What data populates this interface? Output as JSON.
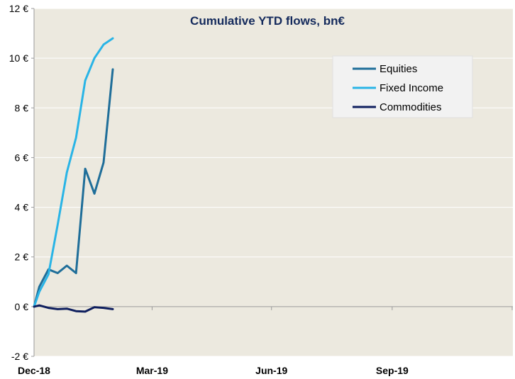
{
  "colors": {
    "plot_background": "#ece9df",
    "grid": "#ffffff",
    "axis": "#9a9a9a",
    "title": "#142a5c",
    "legend_background": "#f2f2f2"
  },
  "chart_data": {
    "type": "line",
    "title": "Cumulative YTD flows, bn€",
    "xlabel": "",
    "ylabel": "",
    "ylim": [
      -2,
      12
    ],
    "xlim": [
      "2018-12-31",
      "2019-12-31"
    ],
    "y_ticks": [
      -2,
      0,
      2,
      4,
      6,
      8,
      10,
      12
    ],
    "y_tick_labels": [
      "-2 €",
      "0 €",
      "2 €",
      "4 €",
      "6 €",
      "8 €",
      "10 €",
      "12 €"
    ],
    "x_ticks": [
      "2018-12-31",
      "2019-03-31",
      "2019-06-30",
      "2019-09-30"
    ],
    "x_tick_labels": [
      "Dec-18",
      "Mar-19",
      "Jun-19",
      "Sep-19"
    ],
    "grid": "horizontal",
    "legend_position": "top-right",
    "series": [
      {
        "name": "Equities",
        "color": "#1f6e99",
        "points": [
          [
            "2018-12-31",
            0.0
          ],
          [
            "2019-01-04",
            0.8
          ],
          [
            "2019-01-11",
            1.5
          ],
          [
            "2019-01-18",
            1.35
          ],
          [
            "2019-01-25",
            1.65
          ],
          [
            "2019-02-01",
            1.35
          ],
          [
            "2019-02-08",
            5.55
          ],
          [
            "2019-02-15",
            4.55
          ],
          [
            "2019-02-22",
            5.8
          ],
          [
            "2019-03-01",
            9.55
          ]
        ]
      },
      {
        "name": "Fixed Income",
        "color": "#29b4e6",
        "points": [
          [
            "2018-12-31",
            0.0
          ],
          [
            "2019-01-04",
            0.6
          ],
          [
            "2019-01-11",
            1.3
          ],
          [
            "2019-01-18",
            3.3
          ],
          [
            "2019-01-25",
            5.4
          ],
          [
            "2019-02-01",
            6.8
          ],
          [
            "2019-02-08",
            9.1
          ],
          [
            "2019-02-15",
            10.0
          ],
          [
            "2019-02-22",
            10.55
          ],
          [
            "2019-03-01",
            10.8
          ]
        ]
      },
      {
        "name": "Commodities",
        "color": "#0f1f5e",
        "points": [
          [
            "2018-12-31",
            0.0
          ],
          [
            "2019-01-04",
            0.05
          ],
          [
            "2019-01-11",
            -0.05
          ],
          [
            "2019-01-18",
            -0.1
          ],
          [
            "2019-01-25",
            -0.08
          ],
          [
            "2019-02-01",
            -0.18
          ],
          [
            "2019-02-08",
            -0.2
          ],
          [
            "2019-02-15",
            -0.02
          ],
          [
            "2019-02-22",
            -0.05
          ],
          [
            "2019-03-01",
            -0.1
          ]
        ]
      }
    ]
  }
}
